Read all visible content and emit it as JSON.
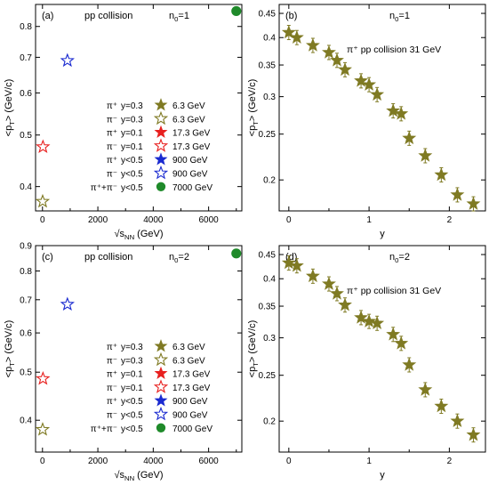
{
  "colors": {
    "olive": "#7f7a23",
    "red": "#e8201f",
    "blue": "#1a2ad0",
    "green": "#1f8a2a",
    "black": "#000000"
  },
  "chart_data": [
    {
      "panel": "(a)",
      "type": "scatter",
      "log_y": true,
      "title": "pp collision",
      "note": "n",
      "note_sub": "0",
      "note_tail": "=1",
      "xlabel_pre": "√s",
      "xlabel_sub": "NN",
      "xlabel_post": " (GeV)",
      "ylabel_pre": "<p",
      "ylabel_sub": "T",
      "ylabel_post": "> (GeV/c)",
      "xlim": [
        -250,
        7200
      ],
      "ylim": [
        0.36,
        0.88
      ],
      "xticks": [
        0,
        2000,
        4000,
        6000
      ],
      "yticks": [
        0.4,
        0.5,
        0.6,
        0.7,
        0.8
      ],
      "series": [
        {
          "particle": "π⁺",
          "cut": "y=0.3",
          "energy": "6.3 GeV",
          "marker": "star",
          "color": "olive",
          "filled": true,
          "x": [
            6.3
          ],
          "y": [
            0.375
          ]
        },
        {
          "particle": "π⁻",
          "cut": "y=0.3",
          "energy": "6.3 GeV",
          "marker": "star",
          "color": "olive",
          "filled": false,
          "x": [
            6.3
          ],
          "y": [
            0.375
          ]
        },
        {
          "particle": "π⁺",
          "cut": "y=0.1",
          "energy": "17.3 GeV",
          "marker": "star",
          "color": "red",
          "filled": true,
          "x": [
            17.3
          ],
          "y": [
            0.475
          ]
        },
        {
          "particle": "π⁻",
          "cut": "y=0.1",
          "energy": "17.3 GeV",
          "marker": "star",
          "color": "red",
          "filled": false,
          "x": [
            17.3
          ],
          "y": [
            0.475
          ]
        },
        {
          "particle": "π⁺",
          "cut": "y<0.5",
          "energy": "900 GeV",
          "marker": "star",
          "color": "blue",
          "filled": true,
          "x": [
            900
          ],
          "y": [
            0.69
          ]
        },
        {
          "particle": "π⁻",
          "cut": "y<0.5",
          "energy": "900 GeV",
          "marker": "star",
          "color": "blue",
          "filled": false,
          "x": [
            900
          ],
          "y": [
            0.69
          ]
        },
        {
          "particle": "π⁺+π⁻",
          "cut": "y<0.5",
          "energy": "7000 GeV",
          "marker": "circle",
          "color": "green",
          "filled": true,
          "x": [
            7000
          ],
          "y": [
            0.855
          ]
        }
      ]
    },
    {
      "panel": "(b)",
      "type": "scatter",
      "log_y": true,
      "title": "π⁺  pp collision  31 GeV",
      "note": "n",
      "note_sub": "0",
      "note_tail": "=1",
      "xlabel_pre": "y",
      "xlabel_sub": "",
      "xlabel_post": "",
      "ylabel_pre": "<p",
      "ylabel_sub": "T",
      "ylabel_post": "> (GeV/c)",
      "xlim": [
        -0.12,
        2.45
      ],
      "ylim": [
        0.172,
        0.47
      ],
      "xticks": [
        0,
        1,
        2
      ],
      "yticks": [
        0.2,
        0.25,
        0.3,
        0.35,
        0.4,
        0.45
      ],
      "series": [
        {
          "name": "π⁺",
          "marker": "star",
          "color": "olive",
          "filled": true,
          "x": [
            0.0,
            0.1,
            0.3,
            0.5,
            0.6,
            0.7,
            0.9,
            1.0,
            1.1,
            1.3,
            1.4,
            1.5,
            1.7,
            1.9,
            2.1,
            2.3
          ],
          "y": [
            0.41,
            0.4,
            0.385,
            0.372,
            0.358,
            0.342,
            0.324,
            0.318,
            0.303,
            0.28,
            0.276,
            0.245,
            0.225,
            0.205,
            0.186,
            0.178
          ]
        }
      ]
    },
    {
      "panel": "(c)",
      "type": "scatter",
      "log_y": true,
      "title": "pp collision",
      "note": "n",
      "note_sub": "0",
      "note_tail": "=2",
      "xlabel_pre": "√s",
      "xlabel_sub": "NN",
      "xlabel_post": " (GeV)",
      "ylabel_pre": "<p",
      "ylabel_sub": "T",
      "ylabel_post": "> (GeV/c)",
      "xlim": [
        -250,
        7200
      ],
      "ylim": [
        0.345,
        0.9
      ],
      "xticks": [
        0,
        2000,
        4000,
        6000
      ],
      "yticks": [
        0.4,
        0.5,
        0.6,
        0.7,
        0.8,
        0.9
      ],
      "series": [
        {
          "particle": "π⁺",
          "cut": "y=0.3",
          "energy": "6.3 GeV",
          "marker": "star",
          "color": "olive",
          "filled": true,
          "x": [
            6.3
          ],
          "y": [
            0.383
          ]
        },
        {
          "particle": "π⁻",
          "cut": "y=0.3",
          "energy": "6.3 GeV",
          "marker": "star",
          "color": "olive",
          "filled": false,
          "x": [
            6.3
          ],
          "y": [
            0.383
          ]
        },
        {
          "particle": "π⁺",
          "cut": "y=0.1",
          "energy": "17.3 GeV",
          "marker": "star",
          "color": "red",
          "filled": true,
          "x": [
            17.3
          ],
          "y": [
            0.485
          ]
        },
        {
          "particle": "π⁻",
          "cut": "y=0.1",
          "energy": "17.3 GeV",
          "marker": "star",
          "color": "red",
          "filled": false,
          "x": [
            17.3
          ],
          "y": [
            0.485
          ]
        },
        {
          "particle": "π⁺",
          "cut": "y<0.5",
          "energy": "900 GeV",
          "marker": "star",
          "color": "blue",
          "filled": true,
          "x": [
            900
          ],
          "y": [
            0.685
          ]
        },
        {
          "particle": "π⁻",
          "cut": "y<0.5",
          "energy": "900 GeV",
          "marker": "star",
          "color": "blue",
          "filled": false,
          "x": [
            900
          ],
          "y": [
            0.685
          ]
        },
        {
          "particle": "π⁺+π⁻",
          "cut": "y<0.5",
          "energy": "7000 GeV",
          "marker": "circle",
          "color": "green",
          "filled": true,
          "x": [
            7000
          ],
          "y": [
            0.868
          ]
        }
      ]
    },
    {
      "panel": "(d)",
      "type": "scatter",
      "log_y": true,
      "title": "π⁺  pp collision  31 GeV",
      "note": "n",
      "note_sub": "0",
      "note_tail": "=2",
      "xlabel_pre": "y",
      "xlabel_sub": "",
      "xlabel_post": "",
      "ylabel_pre": "<p",
      "ylabel_sub": "T",
      "ylabel_post": "> (GeV/c)",
      "xlim": [
        -0.12,
        2.45
      ],
      "ylim": [
        0.172,
        0.47
      ],
      "xticks": [
        0,
        1,
        2
      ],
      "yticks": [
        0.2,
        0.25,
        0.3,
        0.35,
        0.4,
        0.45
      ],
      "series": [
        {
          "name": "π⁺",
          "marker": "star",
          "color": "olive",
          "filled": true,
          "x": [
            0.0,
            0.1,
            0.3,
            0.5,
            0.6,
            0.7,
            0.9,
            1.0,
            1.1,
            1.3,
            1.4,
            1.5,
            1.7,
            1.9,
            2.1,
            2.3
          ],
          "y": [
            0.432,
            0.426,
            0.405,
            0.39,
            0.372,
            0.352,
            0.331,
            0.325,
            0.322,
            0.305,
            0.292,
            0.263,
            0.233,
            0.215,
            0.2,
            0.187
          ]
        }
      ]
    }
  ]
}
